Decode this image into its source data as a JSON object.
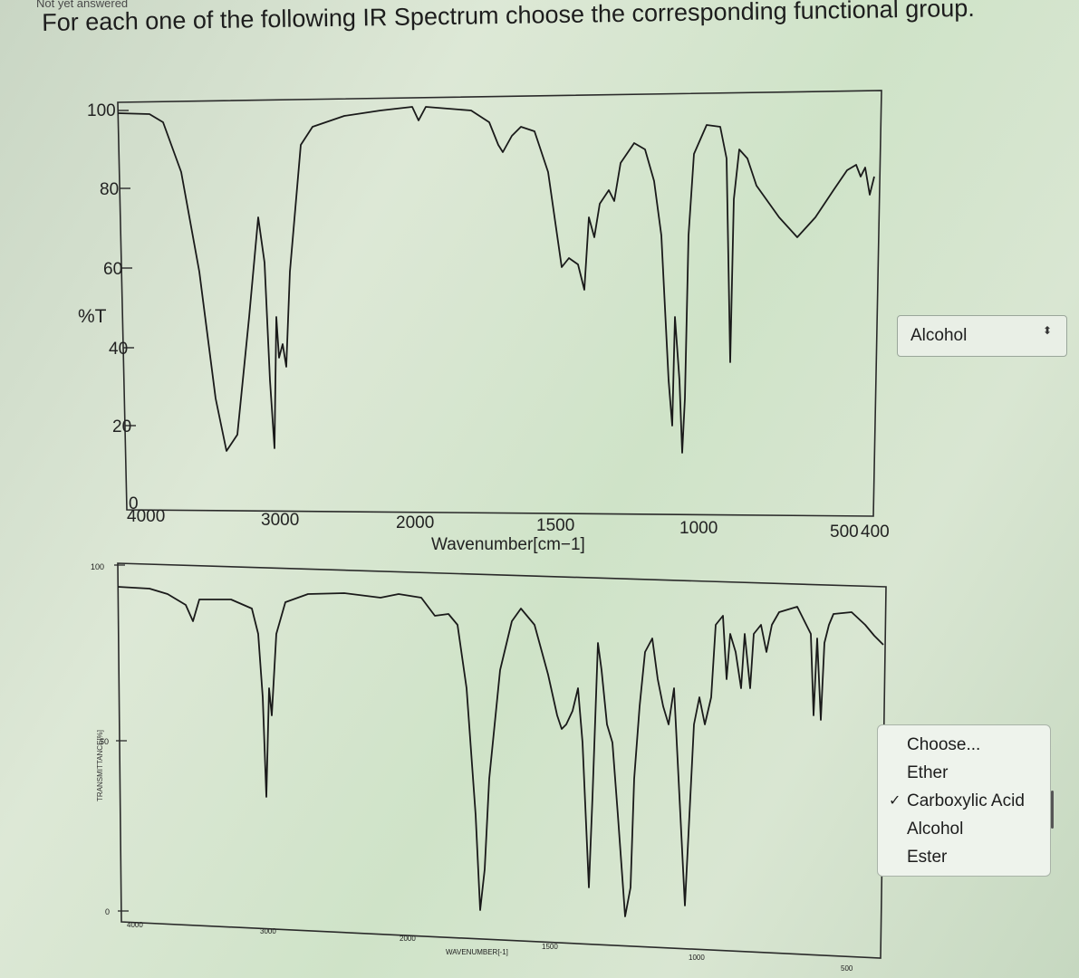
{
  "header": {
    "status_text": "Not yet answered",
    "question_text": "For each one of the following IR Spectrum choose the corresponding functional group."
  },
  "spectrum_1": {
    "ylabel": "%T",
    "xlabel": "Wavenumber[cm−1]",
    "y_ticks": [
      "100",
      "80",
      "60",
      "40",
      "20",
      "0"
    ],
    "x_ticks": [
      "4000",
      "3000",
      "2000",
      "1500",
      "1000",
      "500",
      "400"
    ],
    "answer_select": {
      "selected": "Alcohol",
      "arrow_glyph": "⬍"
    }
  },
  "spectrum_2": {
    "ylabel": "TRANSMITTANCE[%]",
    "xlabel": "WAVENUMBER[-1]",
    "y_ticks": [
      "100",
      "50",
      "0"
    ],
    "x_ticks": [
      "4000",
      "3000",
      "2000",
      "1500",
      "1000",
      "500"
    ],
    "answer_dropdown": {
      "options": [
        "Choose...",
        "Ether",
        "Carboxylic Acid",
        "Alcohol",
        "Ester"
      ],
      "checked_index": 2,
      "check_glyph": "✓"
    }
  },
  "colors": {
    "line": "#1a1a1a",
    "frame": "#2a2a2a"
  }
}
